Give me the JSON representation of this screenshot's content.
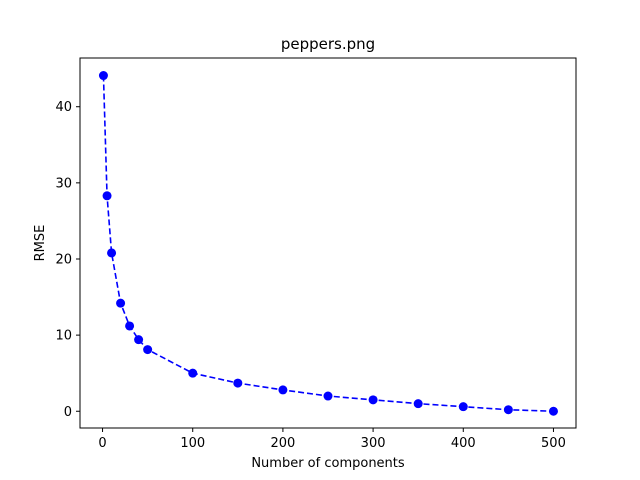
{
  "chart_data": {
    "type": "line",
    "title": "peppers.png",
    "xlabel": "Number of components",
    "ylabel": "RMSE",
    "xlim": [
      -25,
      525
    ],
    "ylim": [
      -2.2,
      46.4
    ],
    "xticks": [
      0,
      100,
      200,
      300,
      400,
      500
    ],
    "yticks": [
      0,
      10,
      20,
      30,
      40
    ],
    "grid": false,
    "series": [
      {
        "color": "#0000ff",
        "line_style": "dashed",
        "marker": "circle",
        "x": [
          1,
          5,
          10,
          20,
          30,
          40,
          50,
          100,
          150,
          200,
          250,
          300,
          350,
          400,
          450,
          500
        ],
        "y": [
          44.1,
          28.3,
          20.8,
          14.2,
          11.2,
          9.4,
          8.1,
          5.0,
          3.7,
          2.8,
          2.0,
          1.5,
          1.0,
          0.6,
          0.2,
          0.0
        ]
      }
    ]
  }
}
